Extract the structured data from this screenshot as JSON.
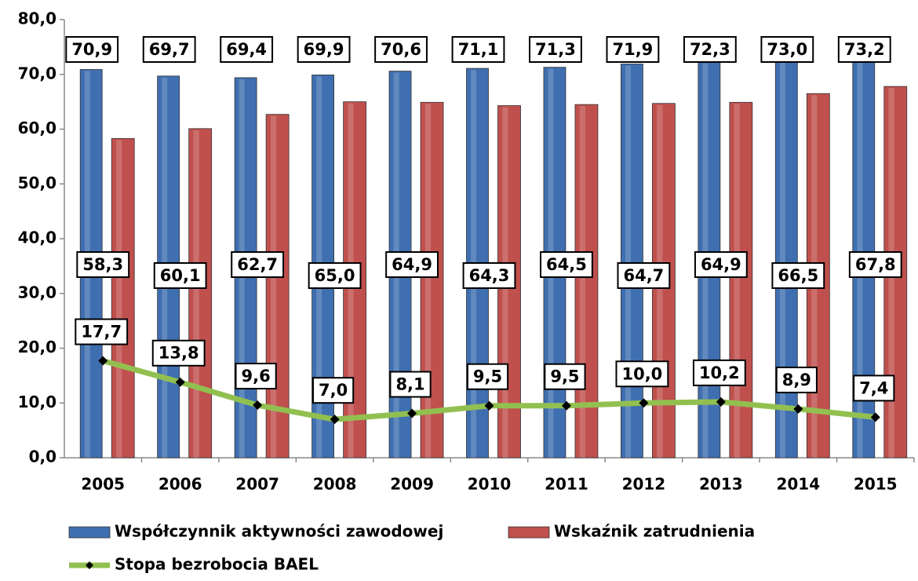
{
  "chart_data": {
    "type": "bar_line",
    "categories": [
      "2005",
      "2006",
      "2007",
      "2008",
      "2009",
      "2010",
      "2011",
      "2012",
      "2013",
      "2014",
      "2015"
    ],
    "series": [
      {
        "name": "Współczynnik aktywności zawodowej",
        "type": "bar",
        "color": "#3f6fb0",
        "values": [
          70.9,
          69.7,
          69.4,
          69.9,
          70.6,
          71.1,
          71.3,
          71.9,
          72.3,
          73.0,
          73.2
        ],
        "value_labels": [
          "70,9",
          "69,7",
          "69,4",
          "69,9",
          "70,6",
          "71,1",
          "71,3",
          "71,9",
          "72,3",
          "73,0",
          "73,2"
        ],
        "label_color": "#2f5597"
      },
      {
        "name": "Wskaźnik zatrudnienia",
        "type": "bar",
        "color": "#c0504d",
        "values": [
          58.3,
          60.1,
          62.7,
          65.0,
          64.9,
          64.3,
          64.5,
          64.7,
          64.9,
          66.5,
          67.8
        ],
        "value_labels": [
          "58,3",
          "60,1",
          "62,7",
          "65,0",
          "64,9",
          "64,3",
          "64,5",
          "64,7",
          "64,9",
          "66,5",
          "67,8"
        ],
        "label_color": "#d02020"
      },
      {
        "name": "Stopa bezrobocia BAEL",
        "type": "line",
        "color": "#92c050",
        "values": [
          17.7,
          13.8,
          9.6,
          7.0,
          8.1,
          9.5,
          9.5,
          10.0,
          10.2,
          8.9,
          7.4
        ],
        "value_labels": [
          "17,7",
          "13,8",
          "9,6",
          "7,0",
          "8,1",
          "9,5",
          "9,5",
          "10,0",
          "10,2",
          "8,9",
          "7,4"
        ],
        "label_color": "#76a33a"
      }
    ],
    "ylim": [
      0,
      80
    ],
    "yticks": [
      {
        "value": 0,
        "label": "0,0"
      },
      {
        "value": 10,
        "label": "10,0"
      },
      {
        "value": 20,
        "label": "20,0"
      },
      {
        "value": 30,
        "label": "30,0"
      },
      {
        "value": 40,
        "label": "40,0"
      },
      {
        "value": 50,
        "label": "50,0"
      },
      {
        "value": 60,
        "label": "60,0"
      },
      {
        "value": 70,
        "label": "70,0"
      },
      {
        "value": 80,
        "label": "80,0"
      }
    ]
  }
}
